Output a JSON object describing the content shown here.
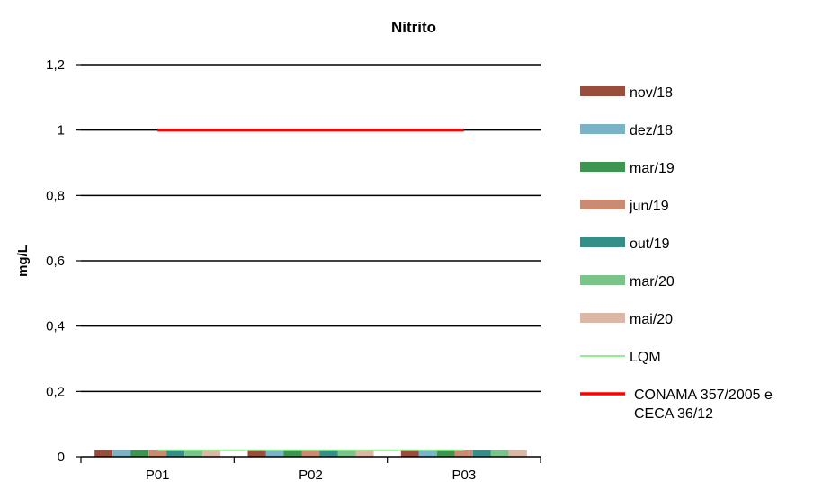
{
  "chart_data": {
    "type": "bar",
    "title": "Nitrito",
    "xlabel": "",
    "ylabel": "mg/L",
    "ylim": [
      0,
      1.2
    ],
    "yticks": [
      "0",
      "0,2",
      "0,4",
      "0,6",
      "0,8",
      "1",
      "1,2"
    ],
    "ytick_values": [
      0,
      0.2,
      0.4,
      0.6,
      0.8,
      1.0,
      1.2
    ],
    "categories": [
      "P01",
      "P02",
      "P03"
    ],
    "grid": true,
    "legend_position": "right",
    "series": [
      {
        "name": "nov/18",
        "color": "#994d3a",
        "values": [
          0.02,
          0.02,
          0.02
        ]
      },
      {
        "name": "dez/18",
        "color": "#7ab3c7",
        "values": [
          0.02,
          0.02,
          0.02
        ]
      },
      {
        "name": "mar/19",
        "color": "#3d9650",
        "values": [
          0.02,
          0.02,
          0.02
        ]
      },
      {
        "name": "jun/19",
        "color": "#c98c73",
        "values": [
          0.02,
          0.02,
          0.02
        ]
      },
      {
        "name": "out/19",
        "color": "#338f87",
        "values": [
          0.02,
          0.02,
          0.02
        ]
      },
      {
        "name": "mar/20",
        "color": "#7ac48a",
        "values": [
          0.02,
          0.02,
          0.02
        ]
      },
      {
        "name": "mai/20",
        "color": "#ddb7a6",
        "values": [
          0.02,
          0.02,
          0.02
        ]
      }
    ],
    "lines": [
      {
        "name": "LQM",
        "color": "#90ee90",
        "value": 0.02
      },
      {
        "name": "CONAMA 357/2005 e CECA 36/12",
        "name_lines": [
          "CONAMA 357/2005 e",
          "CECA 36/12"
        ],
        "color": "#ff0000",
        "value": 1.0
      }
    ]
  }
}
